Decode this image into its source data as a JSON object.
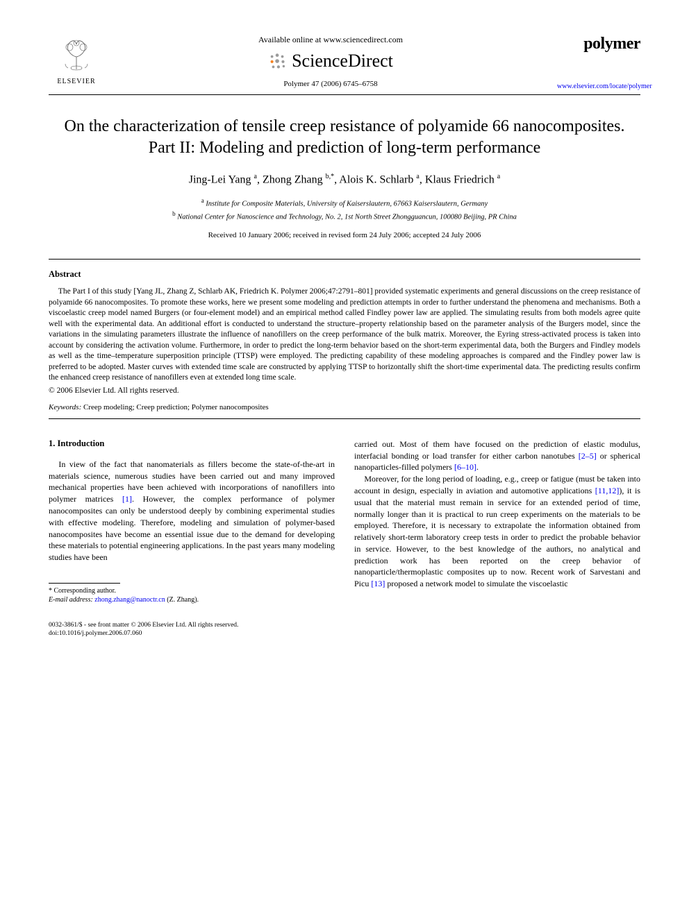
{
  "header": {
    "elsevier_caption": "ELSEVIER",
    "available_online": "Available online at www.sciencedirect.com",
    "sciencedirect": "ScienceDirect",
    "journal_ref": "Polymer 47 (2006) 6745–6758",
    "journal_name": "polymer",
    "journal_url": "www.elsevier.com/locate/polymer"
  },
  "title": "On the characterization of tensile creep resistance of polyamide 66 nanocomposites. Part II: Modeling and prediction of long-term performance",
  "authors_html": "Jing-Lei Yang <sup>a</sup>, Zhong Zhang <sup>b,</sup><sup class='star'>*</sup>, Alois K. Schlarb <sup>a</sup>, Klaus Friedrich <sup>a</sup>",
  "affiliations": {
    "a": "Institute for Composite Materials, University of Kaiserslautern, 67663 Kaiserslautern, Germany",
    "b": "National Center for Nanoscience and Technology, No. 2, 1st North Street Zhongguancun, 100080 Beijing, PR China"
  },
  "dates": "Received 10 January 2006; received in revised form 24 July 2006; accepted 24 July 2006",
  "abstract": {
    "heading": "Abstract",
    "text": "The Part I of this study [Yang JL, Zhang Z, Schlarb AK, Friedrich K. Polymer 2006;47:2791–801] provided systematic experiments and general discussions on the creep resistance of polyamide 66 nanocomposites. To promote these works, here we present some modeling and prediction attempts in order to further understand the phenomena and mechanisms. Both a viscoelastic creep model named Burgers (or four-element model) and an empirical method called Findley power law are applied. The simulating results from both models agree quite well with the experimental data. An additional effort is conducted to understand the structure–property relationship based on the parameter analysis of the Burgers model, since the variations in the simulating parameters illustrate the influence of nanofillers on the creep performance of the bulk matrix. Moreover, the Eyring stress-activated process is taken into account by considering the activation volume. Furthermore, in order to predict the long-term behavior based on the short-term experimental data, both the Burgers and Findley models as well as the time–temperature superposition principle (TTSP) were employed. The predicting capability of these modeling approaches is compared and the Findley power law is preferred to be adopted. Master curves with extended time scale are constructed by applying TTSP to horizontally shift the short-time experimental data. The predicting results confirm the enhanced creep resistance of nanofillers even at extended long time scale.",
    "copyright": "© 2006 Elsevier Ltd. All rights reserved."
  },
  "keywords": {
    "label": "Keywords:",
    "text": "Creep modeling; Creep prediction; Polymer nanocomposites"
  },
  "section1": {
    "heading": "1. Introduction",
    "col1_para1": "In view of the fact that nanomaterials as fillers become the state-of-the-art in materials science, numerous studies have been carried out and many improved mechanical properties have been achieved with incorporations of nanofillers into polymer matrices [1]. However, the complex performance of polymer nanocomposites can only be understood deeply by combining experimental studies with effective modeling. Therefore, modeling and simulation of polymer-based nanocomposites have become an essential issue due to the demand for developing these materials to potential engineering applications. In the past years many modeling studies have been",
    "col2_para1_cont": "carried out. Most of them have focused on the prediction of elastic modulus, interfacial bonding or load transfer for either carbon nanotubes [2–5] or spherical nanoparticles-filled polymers [6–10].",
    "col2_para2": "Moreover, for the long period of loading, e.g., creep or fatigue (must be taken into account in design, especially in aviation and automotive applications [11,12]), it is usual that the material must remain in service for an extended period of time, normally longer than it is practical to run creep experiments on the materials to be employed. Therefore, it is necessary to extrapolate the information obtained from relatively short-term laboratory creep tests in order to predict the probable behavior in service. However, to the best knowledge of the authors, no analytical and prediction work has been reported on the creep behavior of nanoparticle/thermoplastic composites up to now. Recent work of Sarvestani and Picu [13] proposed a network model to simulate the viscoelastic"
  },
  "footnote": {
    "corresponding": "* Corresponding author.",
    "email_label": "E-mail address:",
    "email": "zhong.zhang@nanoctr.cn",
    "email_author": "(Z. Zhang)."
  },
  "footer": {
    "issn": "0032-3861/$ - see front matter © 2006 Elsevier Ltd. All rights reserved.",
    "doi": "doi:10.1016/j.polymer.2006.07.060"
  },
  "colors": {
    "link": "#0000ee",
    "text": "#000000",
    "background": "#ffffff",
    "sd_orange": "#f58220",
    "sd_gray": "#9a9a9a"
  }
}
